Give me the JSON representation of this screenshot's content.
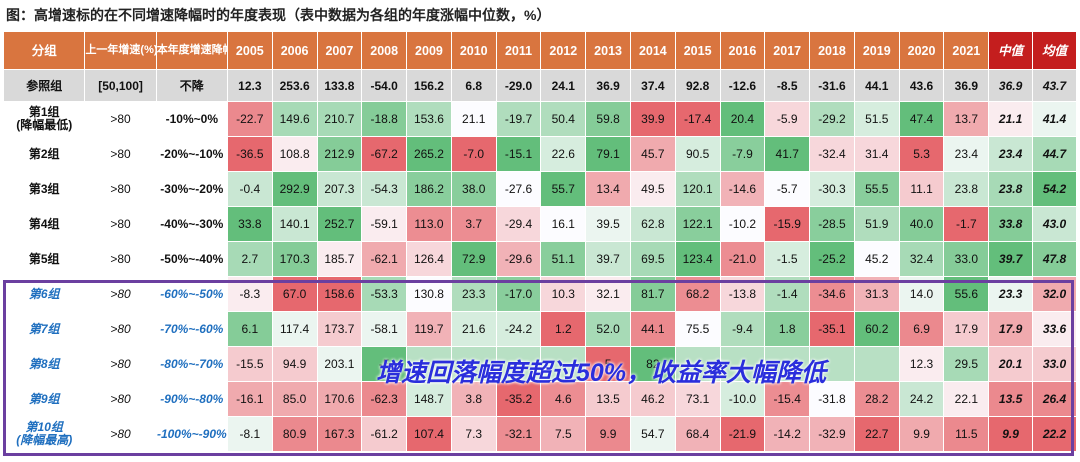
{
  "title": "图：高增速标的在不同增速降幅时的年度表现（表中数据为各组的年度涨幅中位数，%）",
  "columns": {
    "group": "分组",
    "prev_growth": "上一年增速(%)",
    "decline": "本年度增速降幅",
    "years": [
      "2005",
      "2006",
      "2007",
      "2008",
      "2009",
      "2010",
      "2011",
      "2012",
      "2013",
      "2014",
      "2015",
      "2016",
      "2017",
      "2018",
      "2019",
      "2020",
      "2021"
    ],
    "median": "中值",
    "mean": "均值"
  },
  "reference": {
    "name": "参照组",
    "prev_growth": "[50,100]",
    "decline": "不降",
    "values": [
      "12.3",
      "253.6",
      "133.8",
      "-54.0",
      "156.2",
      "6.8",
      "-29.0",
      "24.1",
      "36.9",
      "37.4",
      "92.8",
      "-12.6",
      "-8.5",
      "-31.6",
      "44.1",
      "43.6",
      "36.9"
    ],
    "median": "36.9",
    "mean": "43.7"
  },
  "groups": [
    {
      "name": "第1组",
      "sub": "(降幅最低)",
      "prev": ">80",
      "decline": "-10%~0%",
      "values": [
        "-22.7",
        "149.6",
        "210.7",
        "-18.8",
        "153.6",
        "21.1",
        "-19.7",
        "50.4",
        "59.8",
        "39.9",
        "-17.4",
        "20.4",
        "-5.9",
        "-29.2",
        "51.5",
        "47.4",
        "13.7"
      ],
      "median": "21.1",
      "mean": "41.4"
    },
    {
      "name": "第2组",
      "sub": "",
      "prev": ">80",
      "decline": "-20%~-10%",
      "values": [
        "-36.5",
        "108.8",
        "212.9",
        "-67.2",
        "265.2",
        "-7.0",
        "-15.1",
        "22.6",
        "79.1",
        "45.7",
        "90.5",
        "-7.9",
        "41.7",
        "-32.4",
        "31.4",
        "5.3",
        "23.4"
      ],
      "median": "23.4",
      "mean": "44.7"
    },
    {
      "name": "第3组",
      "sub": "",
      "prev": ">80",
      "decline": "-30%~-20%",
      "values": [
        "-0.4",
        "292.9",
        "207.3",
        "-54.3",
        "186.2",
        "38.0",
        "-27.6",
        "55.7",
        "13.4",
        "49.5",
        "120.1",
        "-14.6",
        "-5.7",
        "-30.3",
        "55.5",
        "11.1",
        "23.8"
      ],
      "median": "23.8",
      "mean": "54.2"
    },
    {
      "name": "第4组",
      "sub": "",
      "prev": ">80",
      "decline": "-40%~-30%",
      "values": [
        "33.8",
        "140.1",
        "252.7",
        "-59.1",
        "113.0",
        "3.7",
        "-29.4",
        "16.1",
        "39.5",
        "62.8",
        "122.1",
        "-10.2",
        "-15.9",
        "-28.5",
        "51.9",
        "40.0",
        "-1.7"
      ],
      "median": "33.8",
      "mean": "43.0"
    },
    {
      "name": "第5组",
      "sub": "",
      "prev": ">80",
      "decline": "-50%~-40%",
      "values": [
        "2.7",
        "170.3",
        "185.7",
        "-62.1",
        "126.4",
        "72.9",
        "-29.6",
        "51.1",
        "39.7",
        "69.5",
        "123.4",
        "-21.0",
        "-1.5",
        "-25.2",
        "45.2",
        "32.4",
        "33.0"
      ],
      "median": "39.7",
      "mean": "47.8"
    },
    {
      "name": "第6组",
      "sub": "",
      "prev": ">80",
      "decline": "-60%~-50%",
      "values": [
        "-8.3",
        "67.0",
        "158.6",
        "-53.3",
        "130.8",
        "23.3",
        "-17.0",
        "10.3",
        "32.1",
        "81.7",
        "68.2",
        "-13.8",
        "-1.4",
        "-34.6",
        "31.3",
        "14.0",
        "55.6"
      ],
      "median": "23.3",
      "mean": "32.0"
    },
    {
      "name": "第7组",
      "sub": "",
      "prev": ">80",
      "decline": "-70%~-60%",
      "values": [
        "6.1",
        "117.4",
        "173.7",
        "-58.1",
        "119.7",
        "21.6",
        "-24.2",
        "1.2",
        "52.0",
        "44.1",
        "75.5",
        "-9.4",
        "1.8",
        "-35.1",
        "60.2",
        "6.9",
        "17.9"
      ],
      "median": "17.9",
      "mean": "33.6"
    },
    {
      "name": "第8组",
      "sub": "",
      "prev": ">80",
      "decline": "-80%~-70%",
      "values": [
        "-15.5",
        "94.9",
        "203.1",
        "-5",
        "",
        "",
        "",
        "",
        "5",
        "82",
        "",
        "",
        "",
        "",
        "",
        "12.3",
        "29.5"
      ],
      "median": "20.1",
      "mean": "33.0"
    },
    {
      "name": "第9组",
      "sub": "",
      "prev": ">80",
      "decline": "-90%~-80%",
      "values": [
        "-16.1",
        "85.0",
        "170.6",
        "-62.3",
        "148.7",
        "3.8",
        "-35.2",
        "4.6",
        "13.5",
        "46.2",
        "73.1",
        "-10.0",
        "-15.4",
        "-31.8",
        "28.2",
        "24.2",
        "22.1"
      ],
      "median": "13.5",
      "mean": "26.4"
    },
    {
      "name": "第10组",
      "sub": "(降幅最高)",
      "prev": ">80",
      "decline": "-100%~-90%",
      "values": [
        "-8.1",
        "80.9",
        "167.3",
        "-61.2",
        "107.4",
        "7.3",
        "-32.1",
        "7.5",
        "9.9",
        "54.7",
        "68.4",
        "-21.9",
        "-14.2",
        "-32.9",
        "22.7",
        "9.9",
        "11.5"
      ],
      "median": "9.9",
      "mean": "22.2"
    }
  ],
  "overlay_text": "增速回落幅度超过50%，收益率大幅降低",
  "chart_data": {
    "type": "table",
    "title": "图：高增速标的在不同增速降幅时的年度表现（表中数据为各组的年度涨幅中位数，%）",
    "categories": [
      "2005",
      "2006",
      "2007",
      "2008",
      "2009",
      "2010",
      "2011",
      "2012",
      "2013",
      "2014",
      "2015",
      "2016",
      "2017",
      "2018",
      "2019",
      "2020",
      "2021",
      "中值",
      "均值"
    ],
    "series": [
      {
        "name": "参照组",
        "values": [
          12.3,
          253.6,
          133.8,
          -54.0,
          156.2,
          6.8,
          -29.0,
          24.1,
          36.9,
          37.4,
          92.8,
          -12.6,
          -8.5,
          -31.6,
          44.1,
          43.6,
          36.9,
          36.9,
          43.7
        ]
      },
      {
        "name": "第1组",
        "values": [
          -22.7,
          149.6,
          210.7,
          -18.8,
          153.6,
          21.1,
          -19.7,
          50.4,
          59.8,
          39.9,
          -17.4,
          20.4,
          -5.9,
          -29.2,
          51.5,
          47.4,
          13.7,
          21.1,
          41.4
        ]
      },
      {
        "name": "第2组",
        "values": [
          -36.5,
          108.8,
          212.9,
          -67.2,
          265.2,
          -7.0,
          -15.1,
          22.6,
          79.1,
          45.7,
          90.5,
          -7.9,
          41.7,
          -32.4,
          31.4,
          5.3,
          23.4,
          23.4,
          44.7
        ]
      },
      {
        "name": "第3组",
        "values": [
          -0.4,
          292.9,
          207.3,
          -54.3,
          186.2,
          38.0,
          -27.6,
          55.7,
          13.4,
          49.5,
          120.1,
          -14.6,
          -5.7,
          -30.3,
          55.5,
          11.1,
          23.8,
          23.8,
          54.2
        ]
      },
      {
        "name": "第4组",
        "values": [
          33.8,
          140.1,
          252.7,
          -59.1,
          113.0,
          3.7,
          -29.4,
          16.1,
          39.5,
          62.8,
          122.1,
          -10.2,
          -15.9,
          -28.5,
          51.9,
          40.0,
          -1.7,
          33.8,
          43.0
        ]
      },
      {
        "name": "第5组",
        "values": [
          2.7,
          170.3,
          185.7,
          -62.1,
          126.4,
          72.9,
          -29.6,
          51.1,
          39.7,
          69.5,
          123.4,
          -21.0,
          -1.5,
          -25.2,
          45.2,
          32.4,
          33.0,
          39.7,
          47.8
        ]
      },
      {
        "name": "第6组",
        "values": [
          -8.3,
          67.0,
          158.6,
          -53.3,
          130.8,
          23.3,
          -17.0,
          10.3,
          32.1,
          81.7,
          68.2,
          -13.8,
          -1.4,
          -34.6,
          31.3,
          14.0,
          55.6,
          23.3,
          32.0
        ]
      },
      {
        "name": "第7组",
        "values": [
          6.1,
          117.4,
          173.7,
          -58.1,
          119.7,
          21.6,
          -24.2,
          1.2,
          52.0,
          44.1,
          75.5,
          -9.4,
          1.8,
          -35.1,
          60.2,
          6.9,
          17.9,
          17.9,
          33.6
        ]
      },
      {
        "name": "第8组",
        "values": [
          -15.5,
          94.9,
          203.1,
          null,
          null,
          null,
          null,
          null,
          null,
          null,
          null,
          null,
          null,
          null,
          null,
          12.3,
          29.5,
          20.1,
          33.0
        ]
      },
      {
        "name": "第9组",
        "values": [
          -16.1,
          85.0,
          170.6,
          -62.3,
          148.7,
          3.8,
          -35.2,
          4.6,
          13.5,
          46.2,
          73.1,
          -10.0,
          -15.4,
          -31.8,
          28.2,
          24.2,
          22.1,
          13.5,
          26.4
        ]
      },
      {
        "name": "第10组",
        "values": [
          -8.1,
          80.9,
          167.3,
          -61.2,
          107.4,
          7.3,
          -32.1,
          7.5,
          9.9,
          54.7,
          68.4,
          -21.9,
          -14.2,
          -32.9,
          22.7,
          9.9,
          11.5,
          9.9,
          22.2
        ]
      }
    ]
  }
}
